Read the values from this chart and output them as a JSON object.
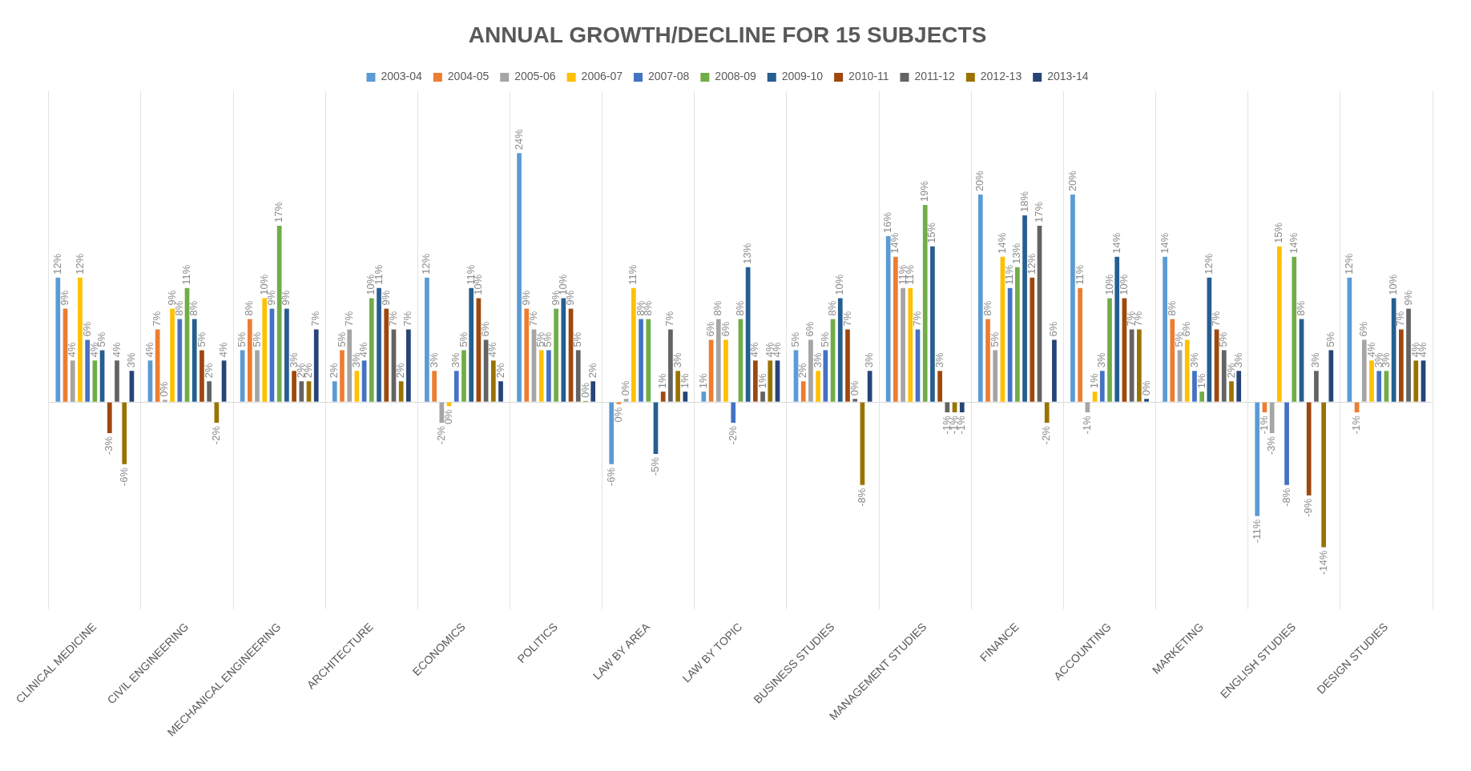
{
  "chart_data": {
    "type": "bar",
    "title": "ANNUAL GROWTH/DECLINE FOR 15 SUBJECTS",
    "categories": [
      "CLINICAL MEDICINE",
      "CIVIL ENGINEERING",
      "MECHANICAL ENGINEERING",
      "ARCHITECTURE",
      "ECONOMICS",
      "POLITICS",
      "LAW BY AREA",
      "LAW BY TOPIC",
      "BUSINESS STUDIES",
      "MANAGEMENT STUDIES",
      "FINANCE",
      "ACCOUNTING",
      "MARKETING",
      "ENGLISH STUDIES",
      "DESIGN STUDIES"
    ],
    "grid": "x",
    "legend": "top",
    "series": [
      {
        "name": "2003-04",
        "color": "#5b9bd5",
        "values": [
          12,
          4,
          5,
          2,
          12,
          24,
          -6,
          1,
          5,
          16,
          20,
          20,
          14,
          -11,
          12
        ],
        "value_labels": [
          "12%",
          "4%",
          "5%",
          "2%",
          "12%",
          "24%",
          "-6%",
          "1%",
          "5%",
          "16%",
          "20%",
          "20%",
          "14%",
          "-11%",
          "12%"
        ]
      },
      {
        "name": "2004-05",
        "color": "#ed7d31",
        "values": [
          9,
          7,
          8,
          5,
          3,
          9,
          -0.2,
          6,
          2,
          14,
          8,
          11,
          8,
          -1,
          -1
        ],
        "value_labels": [
          "9%",
          "7%",
          "8%",
          "5%",
          "3%",
          "9%",
          "0%",
          "6%",
          "2%",
          "14%",
          "8%",
          "11%",
          "8%",
          "-1%",
          "-1%"
        ]
      },
      {
        "name": "2005-06",
        "color": "#a5a5a5",
        "values": [
          4,
          0.2,
          5,
          7,
          -2,
          7,
          0.3,
          8,
          6,
          11,
          5,
          -1,
          5,
          -3,
          6
        ],
        "value_labels": [
          "4%",
          "0%",
          "5%",
          "7%",
          "-2%",
          "7%",
          "0%",
          "8%",
          "6%",
          "11%",
          "5%",
          "-1%",
          "5%",
          "-3%",
          "6%"
        ]
      },
      {
        "name": "2006-07",
        "color": "#ffc000",
        "values": [
          12,
          9,
          10,
          3,
          -0.4,
          5,
          11,
          6,
          3,
          11,
          14,
          1,
          6,
          15,
          4
        ],
        "value_labels": [
          "12%",
          "9%",
          "10%",
          "3%",
          "0%",
          "5%",
          "11%",
          "6%",
          "3%",
          "11%",
          "14%",
          "1%",
          "6%",
          "15%",
          "4%"
        ]
      },
      {
        "name": "2007-08",
        "color": "#4472c4",
        "values": [
          6,
          8,
          9,
          4,
          3,
          5,
          8,
          -2,
          5,
          7,
          11,
          3,
          3,
          -8,
          3
        ],
        "value_labels": [
          "6%",
          "8%",
          "9%",
          "4%",
          "3%",
          "5%",
          "8%",
          "-2%",
          "5%",
          "7%",
          "11%",
          "3%",
          "3%",
          "-8%",
          "3%"
        ]
      },
      {
        "name": "2008-09",
        "color": "#70ad47",
        "values": [
          4,
          11,
          17,
          10,
          5,
          9,
          8,
          8,
          8,
          19,
          13,
          10,
          1,
          14,
          3
        ],
        "value_labels": [
          "4%",
          "11%",
          "17%",
          "10%",
          "5%",
          "9%",
          "8%",
          "8%",
          "8%",
          "19%",
          "13%",
          "10%",
          "1%",
          "14%",
          "3%"
        ]
      },
      {
        "name": "2009-10",
        "color": "#255e91",
        "values": [
          5,
          8,
          9,
          11,
          11,
          10,
          -5,
          13,
          10,
          15,
          18,
          14,
          12,
          8,
          10
        ],
        "value_labels": [
          "5%",
          "8%",
          "9%",
          "11%",
          "11%",
          "10%",
          "-5%",
          "13%",
          "10%",
          "15%",
          "18%",
          "14%",
          "12%",
          "8%",
          "10%"
        ]
      },
      {
        "name": "2010-11",
        "color": "#9e480e",
        "values": [
          -3,
          5,
          3,
          9,
          10,
          9,
          1,
          4,
          7,
          3,
          12,
          10,
          7,
          -9,
          7
        ],
        "value_labels": [
          "-3%",
          "5%",
          "3%",
          "9%",
          "10%",
          "9%",
          "1%",
          "4%",
          "7%",
          "3%",
          "12%",
          "10%",
          "7%",
          "-9%",
          "7%"
        ]
      },
      {
        "name": "2011-12",
        "color": "#636363",
        "values": [
          4,
          2,
          2,
          7,
          6,
          5,
          7,
          1,
          0.3,
          -1,
          17,
          7,
          5,
          3,
          9
        ],
        "value_labels": [
          "4%",
          "2%",
          "2%",
          "7%",
          "6%",
          "5%",
          "7%",
          "1%",
          "0%",
          "-1%",
          "17%",
          "7%",
          "5%",
          "3%",
          "9%"
        ]
      },
      {
        "name": "2012-13",
        "color": "#997300",
        "values": [
          -6,
          -2,
          2,
          2,
          4,
          0.1,
          3,
          4,
          -8,
          -1,
          -2,
          7,
          2,
          -14,
          4
        ],
        "value_labels": [
          "-6%",
          "-2%",
          "2%",
          "2%",
          "4%",
          "0%",
          "3%",
          "4%",
          "-8%",
          "-1%",
          "-2%",
          "7%",
          "2%",
          "-14%",
          "4%"
        ]
      },
      {
        "name": "2013-14",
        "color": "#264478",
        "values": [
          3,
          4,
          7,
          7,
          2,
          2,
          1,
          4,
          3,
          -1,
          6,
          0.3,
          3,
          5,
          4
        ],
        "value_labels": [
          "3%",
          "4%",
          "7%",
          "7%",
          "2%",
          "2%",
          "1%",
          "4%",
          "3%",
          "-1%",
          "6%",
          "0%",
          "3%",
          "5%",
          "4%"
        ]
      }
    ]
  }
}
